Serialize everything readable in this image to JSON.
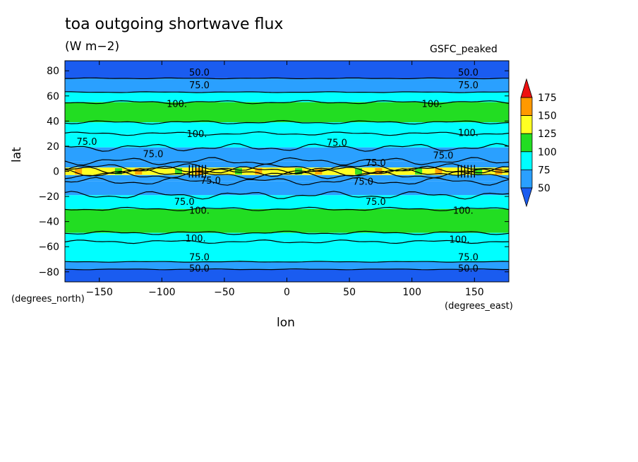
{
  "chart_data": {
    "type": "heatmap",
    "title": "toa outgoing shortwave flux",
    "subtitle": "(W m−2)",
    "dataset_label": "GSFC_peaked",
    "xlabel": "lon",
    "ylabel": "lat",
    "x_units": "(degrees_east)",
    "y_units": "(degrees_north)",
    "xlim": [
      -177.5,
      177.5
    ],
    "ylim": [
      -88,
      88
    ],
    "x_ticks": [
      -150,
      -100,
      -50,
      0,
      50,
      100,
      150
    ],
    "y_ticks": [
      -80,
      -60,
      -40,
      -20,
      0,
      20,
      40,
      60,
      80
    ],
    "colorbar": {
      "levels": [
        50,
        75,
        100,
        125,
        150,
        175
      ],
      "colors": {
        "below_50": "#1a5cf0",
        "50_75": "#2aa0ff",
        "75_100": "#00ffff",
        "100_125": "#22dd22",
        "125_150": "#ffff22",
        "150_175": "#ff9900",
        "above_175": "#ee1111"
      }
    },
    "zonal_bands": [
      {
        "lat_min": 74,
        "lat_max": 88,
        "value": "<50"
      },
      {
        "lat_min": 63,
        "lat_max": 74,
        "value": "50-75"
      },
      {
        "lat_min": 55,
        "lat_max": 63,
        "value": "75-100"
      },
      {
        "lat_min": 39,
        "lat_max": 55,
        "value": "100-125"
      },
      {
        "lat_min": 30,
        "lat_max": 39,
        "value": "75-100"
      },
      {
        "lat_min": 19,
        "lat_max": 30,
        "value": "75-100"
      },
      {
        "lat_min": 8,
        "lat_max": 19,
        "value": "50-75"
      },
      {
        "lat_min": 3,
        "lat_max": 8,
        "value": "50-75"
      },
      {
        "lat_min": -3,
        "lat_max": 3,
        "value": "125-175"
      },
      {
        "lat_min": -8,
        "lat_max": -3,
        "value": "50-75"
      },
      {
        "lat_min": -19,
        "lat_max": -8,
        "value": "50-75"
      },
      {
        "lat_min": -30,
        "lat_max": -19,
        "value": "75-100"
      },
      {
        "lat_min": -49,
        "lat_max": -30,
        "value": "100-125"
      },
      {
        "lat_min": -56,
        "lat_max": -49,
        "value": "75-100"
      },
      {
        "lat_min": -72,
        "lat_max": -56,
        "value": "75-100"
      },
      {
        "lat_min": -78,
        "lat_max": -72,
        "value": "50-75"
      },
      {
        "lat_min": -88,
        "lat_max": -78,
        "value": "<50"
      }
    ],
    "contour_labels": [
      {
        "text": "50.0",
        "lon": -70,
        "lat": 79
      },
      {
        "text": "50.0",
        "lon": 145,
        "lat": 79
      },
      {
        "text": "75.0",
        "lon": -70,
        "lat": 69
      },
      {
        "text": "75.0",
        "lon": 145,
        "lat": 69
      },
      {
        "text": "100.",
        "lon": -88,
        "lat": 54
      },
      {
        "text": "100.",
        "lon": 116,
        "lat": 54
      },
      {
        "text": "100.",
        "lon": -72,
        "lat": 30
      },
      {
        "text": "100.",
        "lon": 145,
        "lat": 31
      },
      {
        "text": "75.0",
        "lon": -160,
        "lat": 24
      },
      {
        "text": "75.0",
        "lon": 40,
        "lat": 23
      },
      {
        "text": "75.0",
        "lon": -107,
        "lat": 14
      },
      {
        "text": "75.0",
        "lon": 125,
        "lat": 13
      },
      {
        "text": "75.0",
        "lon": 71,
        "lat": 7
      },
      {
        "text": "75.0",
        "lon": -61,
        "lat": -7
      },
      {
        "text": "75.0",
        "lon": 61,
        "lat": -8
      },
      {
        "text": "75.0",
        "lon": -82,
        "lat": -24
      },
      {
        "text": "75.0",
        "lon": 71,
        "lat": -24
      },
      {
        "text": "100.",
        "lon": -70,
        "lat": -31
      },
      {
        "text": "100.",
        "lon": 141,
        "lat": -31
      },
      {
        "text": "100.",
        "lon": -73,
        "lat": -53
      },
      {
        "text": "100.",
        "lon": 138,
        "lat": -54
      },
      {
        "text": "75.0",
        "lon": -70,
        "lat": -68
      },
      {
        "text": "75.0",
        "lon": 145,
        "lat": -68
      },
      {
        "text": "50.0",
        "lon": -70,
        "lat": -77
      },
      {
        "text": "50.0",
        "lon": 145,
        "lat": -77
      }
    ]
  }
}
